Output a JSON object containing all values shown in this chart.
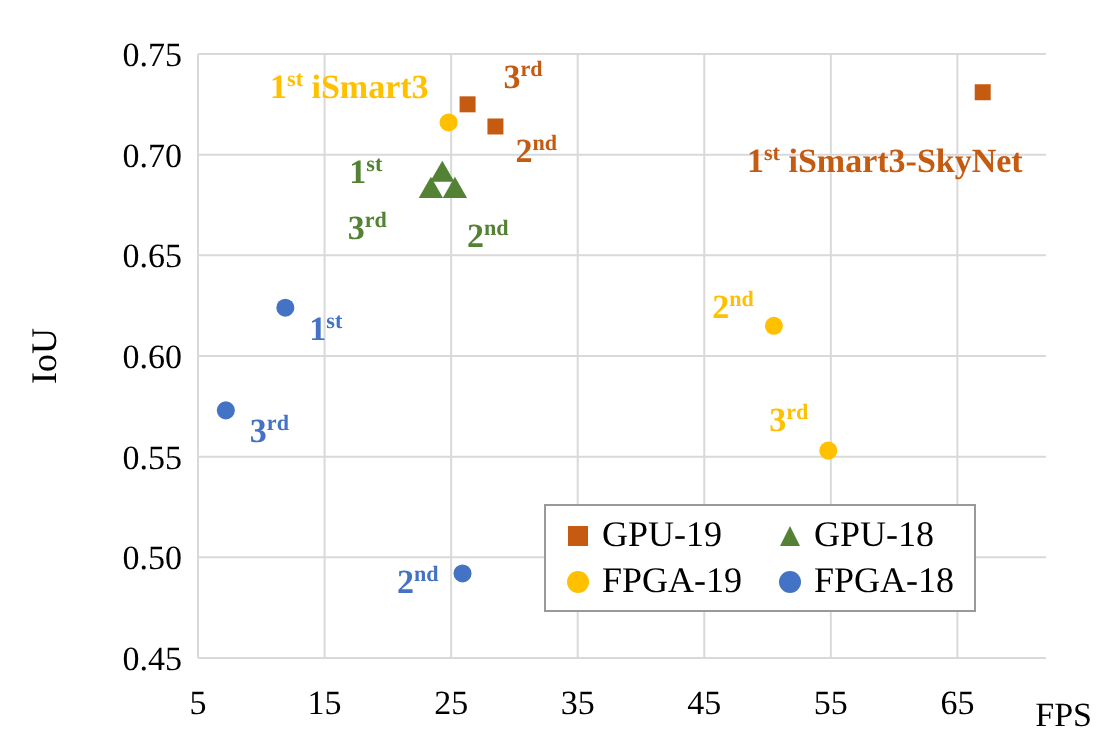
{
  "chart_data": {
    "type": "scatter",
    "xlabel": "FPS",
    "ylabel": "IoU",
    "xlim": [
      5,
      72
    ],
    "xticks": [
      5,
      15,
      25,
      35,
      45,
      55,
      65
    ],
    "ylim": [
      0.45,
      0.75
    ],
    "yticks": [
      0.45,
      {
        "value": 0.5,
        "label": "0.50"
      },
      0.55,
      {
        "value": 0.6,
        "label": "0.60"
      },
      0.65,
      {
        "value": 0.7,
        "label": "0.70"
      },
      0.75
    ],
    "grid": true,
    "legend": "bottom right",
    "series": [
      {
        "name": "GPU-19",
        "color": "#c55a11",
        "marker": "square",
        "x": [
          67,
          28.5,
          26.3
        ],
        "values": [
          0.731,
          0.714,
          0.725
        ]
      },
      {
        "name": "GPU-18",
        "color": "#548235",
        "marker": "triangle",
        "x": [
          24.3,
          25.3,
          23.4
        ],
        "values": [
          0.69,
          0.682,
          0.682
        ]
      },
      {
        "name": "FPGA-19",
        "color": "#ffc000",
        "marker": "circle",
        "x": [
          24.8,
          50.5,
          54.8
        ],
        "values": [
          0.716,
          0.615,
          0.553
        ]
      },
      {
        "name": "FPGA-18",
        "color": "#4472c4",
        "marker": "circle",
        "x": [
          11.9,
          25.9,
          7.2
        ],
        "values": [
          0.624,
          0.492,
          0.573
        ]
      }
    ],
    "annotations": [
      {
        "text": "1$^{st}$ iSmart3",
        "x": 24.8,
        "y": 0.716
      },
      {
        "text": "3$^{rd}$",
        "x": 26.3,
        "y": 0.725
      },
      {
        "text": "2$^{nd}$",
        "x": 28.5,
        "y": 0.714
      },
      {
        "text": "1$^{st}$ iSmart3-SkyNet",
        "x": 67,
        "y": 0.731
      },
      {
        "text": "1$^{st}$",
        "x": 24.3,
        "y": 0.69
      },
      {
        "text": "3$^{rd}$",
        "x": 23.4,
        "y": 0.682
      },
      {
        "text": "2$^{nd}$",
        "x": 25.3,
        "y": 0.682
      },
      {
        "text": "2$^{nd}$",
        "x": 50.5,
        "y": 0.615
      },
      {
        "text": "3$^{rd}$",
        "x": 54.8,
        "y": 0.553
      },
      {
        "text": "1$^{st}$",
        "x": 11.9,
        "y": 0.624
      },
      {
        "text": "3$^{rd}$",
        "x": 7.2,
        "y": 0.573
      },
      {
        "text": "2$^{nd}$",
        "x": 25.9,
        "y": 0.492
      }
    ]
  }
}
